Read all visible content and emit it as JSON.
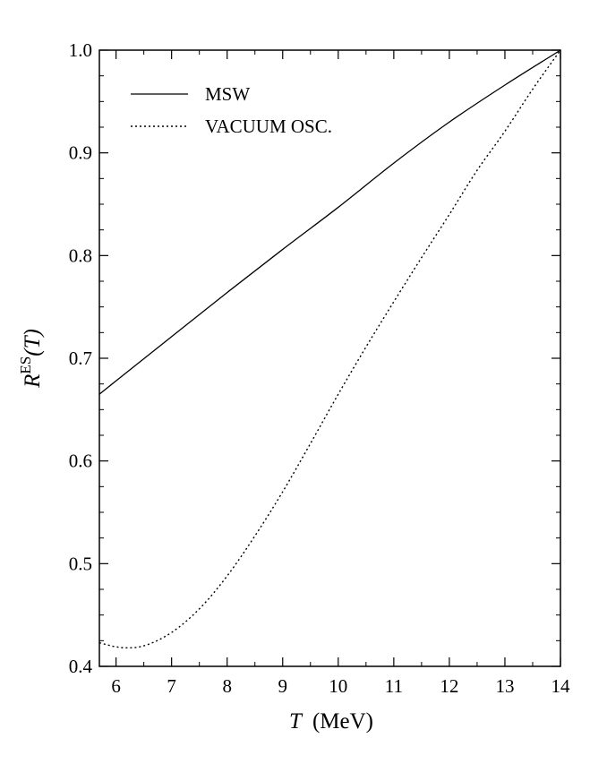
{
  "chart_data": {
    "type": "line",
    "title": "",
    "xlabel": {
      "symbol": "T",
      "unit": "(MeV)"
    },
    "ylabel": {
      "base": "R",
      "superscript": "ES",
      "arg": "(T)"
    },
    "xlim": [
      5.7,
      14
    ],
    "ylim": [
      0.4,
      1.0
    ],
    "x_ticks": [
      6,
      7,
      8,
      9,
      10,
      11,
      12,
      13,
      14
    ],
    "x_tick_labels": [
      "6",
      "7",
      "8",
      "9",
      "10",
      "11",
      "12",
      "13",
      "14"
    ],
    "y_ticks": [
      0.4,
      0.5,
      0.6,
      0.7,
      0.8,
      0.9,
      1.0
    ],
    "y_tick_labels": [
      "0.4",
      "0.5",
      "0.6",
      "0.7",
      "0.8",
      "0.9",
      "1.0"
    ],
    "grid": false,
    "legend_position": "top-left",
    "series": [
      {
        "name": "MSW",
        "style": "solid",
        "x": [
          5.7,
          6,
          7,
          8,
          9,
          10,
          11,
          12,
          13,
          14
        ],
        "y": [
          0.665,
          0.678,
          0.721,
          0.764,
          0.806,
          0.847,
          0.89,
          0.93,
          0.966,
          1.0
        ]
      },
      {
        "name": "VACUUM OSC.",
        "style": "dotted",
        "x": [
          5.7,
          6.0,
          6.2,
          6.5,
          7.0,
          7.5,
          8.0,
          8.5,
          9.0,
          9.5,
          10.0,
          10.5,
          11.0,
          11.5,
          12.0,
          12.5,
          13.0,
          13.5,
          14.0
        ],
        "y": [
          0.423,
          0.419,
          0.418,
          0.42,
          0.433,
          0.456,
          0.488,
          0.527,
          0.57,
          0.617,
          0.665,
          0.711,
          0.755,
          0.798,
          0.84,
          0.883,
          0.921,
          0.962,
          1.0
        ]
      }
    ]
  }
}
